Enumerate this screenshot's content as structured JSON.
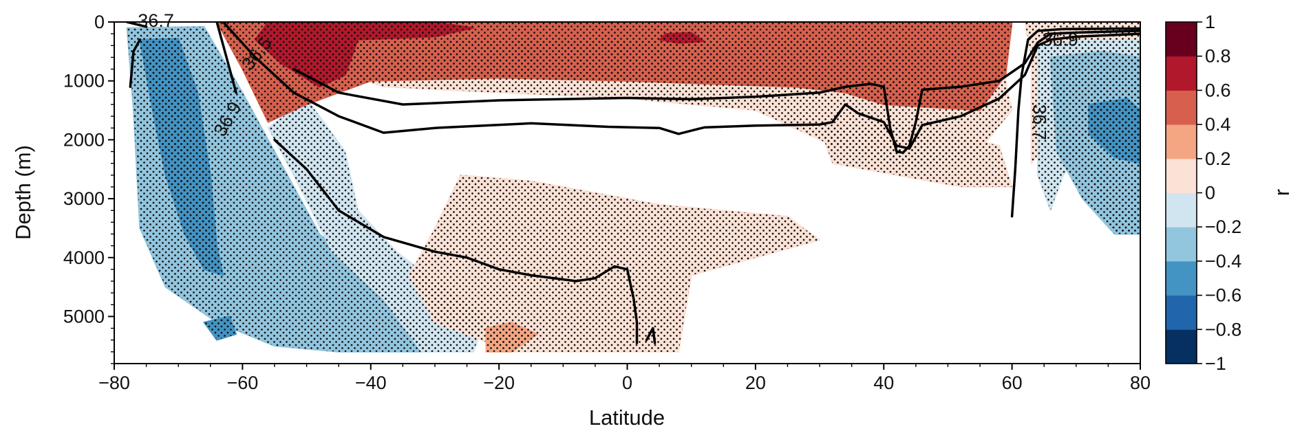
{
  "chart_data": {
    "type": "heatmap",
    "title": "",
    "xlabel": "Latitude",
    "ylabel": "Depth (m)",
    "xlim": [
      -80,
      80
    ],
    "ylim": [
      0,
      5800
    ],
    "y_inverted": true,
    "grid": true,
    "xticks": [
      -80,
      -60,
      -40,
      -20,
      0,
      20,
      40,
      60,
      80
    ],
    "xtick_labels": [
      "−80",
      "−60",
      "−40",
      "−20",
      "0",
      "20",
      "40",
      "60",
      "80"
    ],
    "yticks": [
      0,
      1000,
      2000,
      3000,
      4000,
      5000
    ],
    "ytick_labels": [
      "0",
      "1000",
      "2000",
      "3000",
      "4000",
      "5000"
    ],
    "colorbar": {
      "label": "r",
      "levels": [
        -1,
        -0.8,
        -0.6,
        -0.4,
        -0.2,
        0,
        0.2,
        0.4,
        0.6,
        0.8,
        1
      ],
      "tick_labels": [
        "−1",
        "−0.8",
        "−0.6",
        "−0.4",
        "−0.2",
        "0",
        "0.2",
        "0.4",
        "0.6",
        "0.8",
        "1"
      ],
      "colors": [
        "#053061",
        "#2166ac",
        "#4393c3",
        "#92c5de",
        "#d1e5f0",
        "#fbe2d6",
        "#f4a582",
        "#d6604d",
        "#b2182b",
        "#67001f"
      ]
    },
    "filled_regions": [
      {
        "level": -0.4,
        "color": "#92c5de",
        "points": [
          [
            -78,
            100
          ],
          [
            -66,
            80
          ],
          [
            -60,
            1200
          ],
          [
            -54,
            2400
          ],
          [
            -48,
            3600
          ],
          [
            -38,
            4500
          ],
          [
            -30,
            5600
          ],
          [
            -45,
            5600
          ],
          [
            -55,
            5500
          ],
          [
            -64,
            5100
          ],
          [
            -72,
            4500
          ],
          [
            -76,
            3500
          ],
          [
            -77,
            1500
          ]
        ]
      },
      {
        "level": -0.6,
        "color": "#4393c3",
        "points": [
          [
            -76,
            300
          ],
          [
            -70,
            280
          ],
          [
            -67,
            1200
          ],
          [
            -65,
            2600
          ],
          [
            -64,
            3800
          ],
          [
            -63,
            4300
          ],
          [
            -66,
            4200
          ],
          [
            -69,
            3600
          ],
          [
            -72,
            2600
          ],
          [
            -74,
            1500
          ]
        ]
      },
      {
        "level": -0.6,
        "color": "#4393c3",
        "points": [
          [
            -66,
            5100
          ],
          [
            -62,
            5000
          ],
          [
            -61,
            5300
          ],
          [
            -64,
            5400
          ]
        ]
      },
      {
        "level": -0.2,
        "color": "#d1e5f0",
        "points": [
          [
            -50,
            1300
          ],
          [
            -44,
            2200
          ],
          [
            -42,
            3200
          ],
          [
            -36,
            3900
          ],
          [
            -30,
            4400
          ],
          [
            -22,
            5000
          ],
          [
            -24,
            5600
          ],
          [
            -32,
            5600
          ],
          [
            -38,
            4700
          ],
          [
            -46,
            3900
          ],
          [
            -52,
            2600
          ],
          [
            -56,
            1800
          ]
        ]
      },
      {
        "level": 0.2,
        "color": "#fbe2d6",
        "points": [
          [
            -26,
            2600
          ],
          [
            -15,
            2700
          ],
          [
            -5,
            2900
          ],
          [
            5,
            3100
          ],
          [
            15,
            3200
          ],
          [
            25,
            3300
          ],
          [
            30,
            3700
          ],
          [
            20,
            4000
          ],
          [
            10,
            4300
          ],
          [
            8,
            5600
          ],
          [
            -18,
            5600
          ],
          [
            -30,
            5100
          ],
          [
            -34,
            4300
          ],
          [
            -30,
            3500
          ]
        ]
      },
      {
        "level": 0.4,
        "color": "#f4a582",
        "points": [
          [
            -22,
            5200
          ],
          [
            -18,
            5100
          ],
          [
            -14,
            5300
          ],
          [
            -18,
            5600
          ],
          [
            -22,
            5600
          ]
        ]
      },
      {
        "level": 0.2,
        "color": "#fbe2d6",
        "points": [
          [
            -44,
            350
          ],
          [
            -20,
            300
          ],
          [
            0,
            320
          ],
          [
            20,
            300
          ],
          [
            40,
            350
          ],
          [
            58,
            500
          ],
          [
            60,
            1500
          ],
          [
            54,
            2300
          ],
          [
            44,
            2500
          ],
          [
            32,
            2100
          ],
          [
            20,
            1500
          ],
          [
            0,
            1300
          ],
          [
            -20,
            1200
          ],
          [
            -38,
            1100
          ],
          [
            -46,
            800
          ]
        ]
      },
      {
        "level": 0.2,
        "color": "#fbe2d6",
        "points": [
          [
            30,
            1800
          ],
          [
            40,
            1700
          ],
          [
            50,
            1900
          ],
          [
            58,
            2100
          ],
          [
            60,
            2800
          ],
          [
            52,
            2800
          ],
          [
            42,
            2600
          ],
          [
            32,
            2400
          ]
        ]
      },
      {
        "level": 0.4,
        "color": "#d6604d",
        "points": [
          [
            -64,
            0
          ],
          [
            -20,
            0
          ],
          [
            0,
            0
          ],
          [
            30,
            0
          ],
          [
            60,
            0
          ],
          [
            59,
            900
          ],
          [
            55,
            1500
          ],
          [
            40,
            1400
          ],
          [
            34,
            1200
          ],
          [
            26,
            1100
          ],
          [
            12,
            1050
          ],
          [
            0,
            1000
          ],
          [
            -20,
            950
          ],
          [
            -40,
            1000
          ],
          [
            -50,
            1400
          ],
          [
            -56,
            1700
          ],
          [
            -60,
            800
          ]
        ]
      },
      {
        "level": 0.6,
        "color": "#b2182b",
        "points": [
          [
            -56,
            0
          ],
          [
            -30,
            0
          ],
          [
            -24,
            100
          ],
          [
            -30,
            250
          ],
          [
            -42,
            300
          ],
          [
            -44,
            900
          ],
          [
            -48,
            1100
          ],
          [
            -54,
            700
          ],
          [
            -58,
            300
          ]
        ]
      },
      {
        "level": 0.6,
        "color": "#b2182b",
        "points": [
          [
            6,
            200
          ],
          [
            10,
            180
          ],
          [
            12,
            330
          ],
          [
            8,
            360
          ],
          [
            5,
            300
          ]
        ]
      },
      {
        "level": 0.2,
        "color": "#fbe2d6",
        "points": [
          [
            62,
            0
          ],
          [
            80,
            0
          ],
          [
            80,
            3600
          ],
          [
            76,
            3600
          ],
          [
            72,
            2600
          ],
          [
            66,
            2000
          ],
          [
            63,
            2400
          ],
          [
            63,
            600
          ]
        ]
      },
      {
        "level": -0.2,
        "color": "#d1e5f0",
        "points": [
          [
            64,
            400
          ],
          [
            72,
            300
          ],
          [
            80,
            300
          ],
          [
            80,
            1400
          ],
          [
            76,
            1500
          ],
          [
            72,
            2000
          ],
          [
            68,
            2600
          ],
          [
            66,
            3200
          ],
          [
            64,
            2600
          ]
        ]
      },
      {
        "level": -0.4,
        "color": "#92c5de",
        "points": [
          [
            66,
            600
          ],
          [
            74,
            500
          ],
          [
            80,
            600
          ],
          [
            80,
            3600
          ],
          [
            76,
            3600
          ],
          [
            71,
            3000
          ],
          [
            67,
            2200
          ]
        ]
      },
      {
        "level": -0.6,
        "color": "#4393c3",
        "points": [
          [
            72,
            1400
          ],
          [
            78,
            1300
          ],
          [
            80,
            1500
          ],
          [
            80,
            2400
          ],
          [
            76,
            2300
          ],
          [
            72,
            1900
          ]
        ]
      }
    ],
    "significance_stippling": {
      "marker": "dot",
      "color": "#111111"
    },
    "contour_levels": [
      {
        "label": "36.5",
        "lines": [
          [
            [
              -52,
              800
            ],
            [
              -45,
              1200
            ],
            [
              -35,
              1400
            ],
            [
              -20,
              1330
            ],
            [
              0,
              1290
            ],
            [
              10,
              1310
            ],
            [
              20,
              1270
            ],
            [
              30,
              1200
            ],
            [
              34,
              1100
            ],
            [
              38,
              1050
            ],
            [
              40,
              1100
            ],
            [
              41,
              1800
            ],
            [
              42,
              2200
            ],
            [
              43,
              2220
            ],
            [
              44,
              2100
            ],
            [
              45,
              1700
            ],
            [
              46,
              1150
            ],
            [
              52,
              1100
            ],
            [
              58,
              1000
            ],
            [
              62,
              700
            ],
            [
              64,
              350
            ],
            [
              66,
              200
            ],
            [
              70,
              180
            ],
            [
              80,
              150
            ]
          ]
        ]
      },
      {
        "label": "36.9",
        "lines": [
          [
            [
              -63,
              0
            ],
            [
              -58,
              600
            ],
            [
              -52,
              1200
            ],
            [
              -45,
              1600
            ],
            [
              -38,
              1880
            ],
            [
              -30,
              1800
            ],
            [
              -15,
              1720
            ],
            [
              -3,
              1780
            ],
            [
              5,
              1800
            ],
            [
              8,
              1900
            ],
            [
              12,
              1790
            ],
            [
              20,
              1760
            ],
            [
              30,
              1740
            ],
            [
              32,
              1700
            ],
            [
              34,
              1400
            ],
            [
              36,
              1550
            ],
            [
              40,
              1700
            ],
            [
              42,
              2100
            ],
            [
              44,
              2150
            ],
            [
              46,
              1750
            ],
            [
              52,
              1600
            ],
            [
              58,
              1300
            ],
            [
              62,
              900
            ],
            [
              64,
              400
            ],
            [
              66,
              300
            ],
            [
              70,
              250
            ],
            [
              80,
              200
            ]
          ],
          [
            [
              -64,
              0
            ],
            [
              -61,
              1200
            ]
          ],
          [
            [
              -55,
              2000
            ],
            [
              -50,
              2500
            ],
            [
              -45,
              3200
            ],
            [
              -38,
              3650
            ],
            [
              -30,
              3900
            ],
            [
              -25,
              4000
            ],
            [
              -20,
              4200
            ],
            [
              -15,
              4300
            ],
            [
              -8,
              4400
            ],
            [
              -5,
              4350
            ],
            [
              -2,
              4150
            ],
            [
              0,
              4200
            ],
            [
              1,
              4700
            ],
            [
              1.5,
              5100
            ],
            [
              1.5,
              5450
            ]
          ],
          [
            [
              3,
              5400
            ],
            [
              4,
              5200
            ],
            [
              4.3,
              5450
            ]
          ],
          [
            [
              60,
              3300
            ],
            [
              60.5,
              2500
            ],
            [
              61,
              1500
            ],
            [
              61.5,
              900
            ],
            [
              62.5,
              300
            ],
            [
              64,
              150
            ],
            [
              68,
              120
            ],
            [
              80,
              110
            ]
          ]
        ]
      },
      {
        "label": "36.7",
        "lines": [
          [
            [
              -78,
              0
            ],
            [
              -75,
              80
            ]
          ],
          [
            [
              -77.5,
              1100
            ],
            [
              -77,
              500
            ],
            [
              -76,
              300
            ]
          ]
        ]
      }
    ]
  }
}
